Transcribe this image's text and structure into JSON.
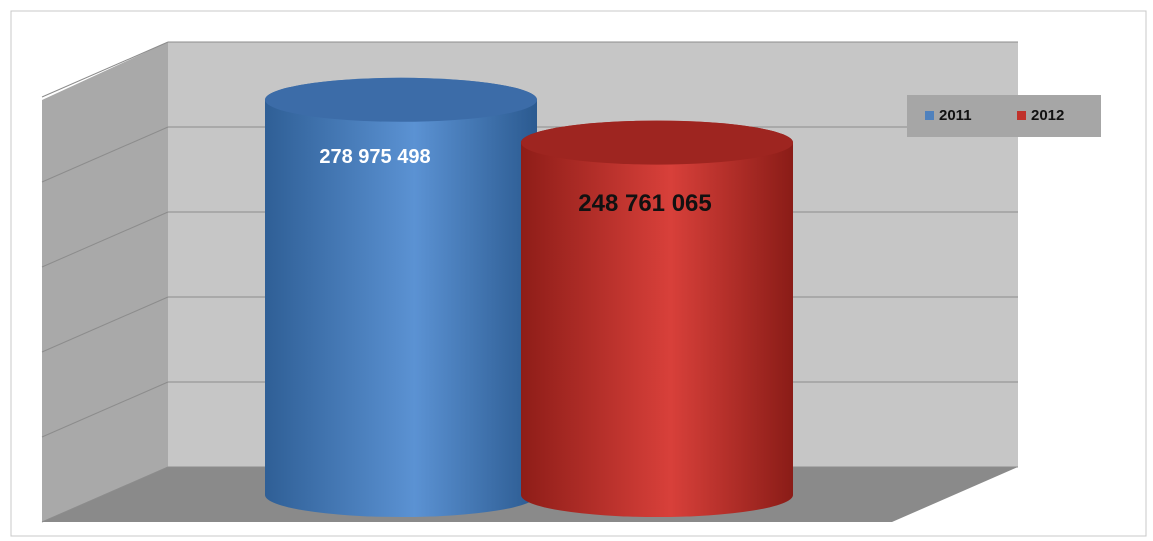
{
  "chart_data": {
    "type": "cylinder",
    "series": [
      {
        "name": "2011",
        "color": "#4f81bd",
        "values": [
          278975498
        ],
        "value_labels": [
          "278 975 498"
        ]
      },
      {
        "name": "2012",
        "color": "#c0312b",
        "values": [
          248761065
        ],
        "value_labels": [
          "248 761 065"
        ]
      }
    ],
    "ylim": [
      0,
      300000000
    ],
    "yticks": [
      0,
      60000000,
      120000000,
      180000000,
      240000000,
      300000000
    ],
    "grid": true,
    "legend": "top-right"
  }
}
